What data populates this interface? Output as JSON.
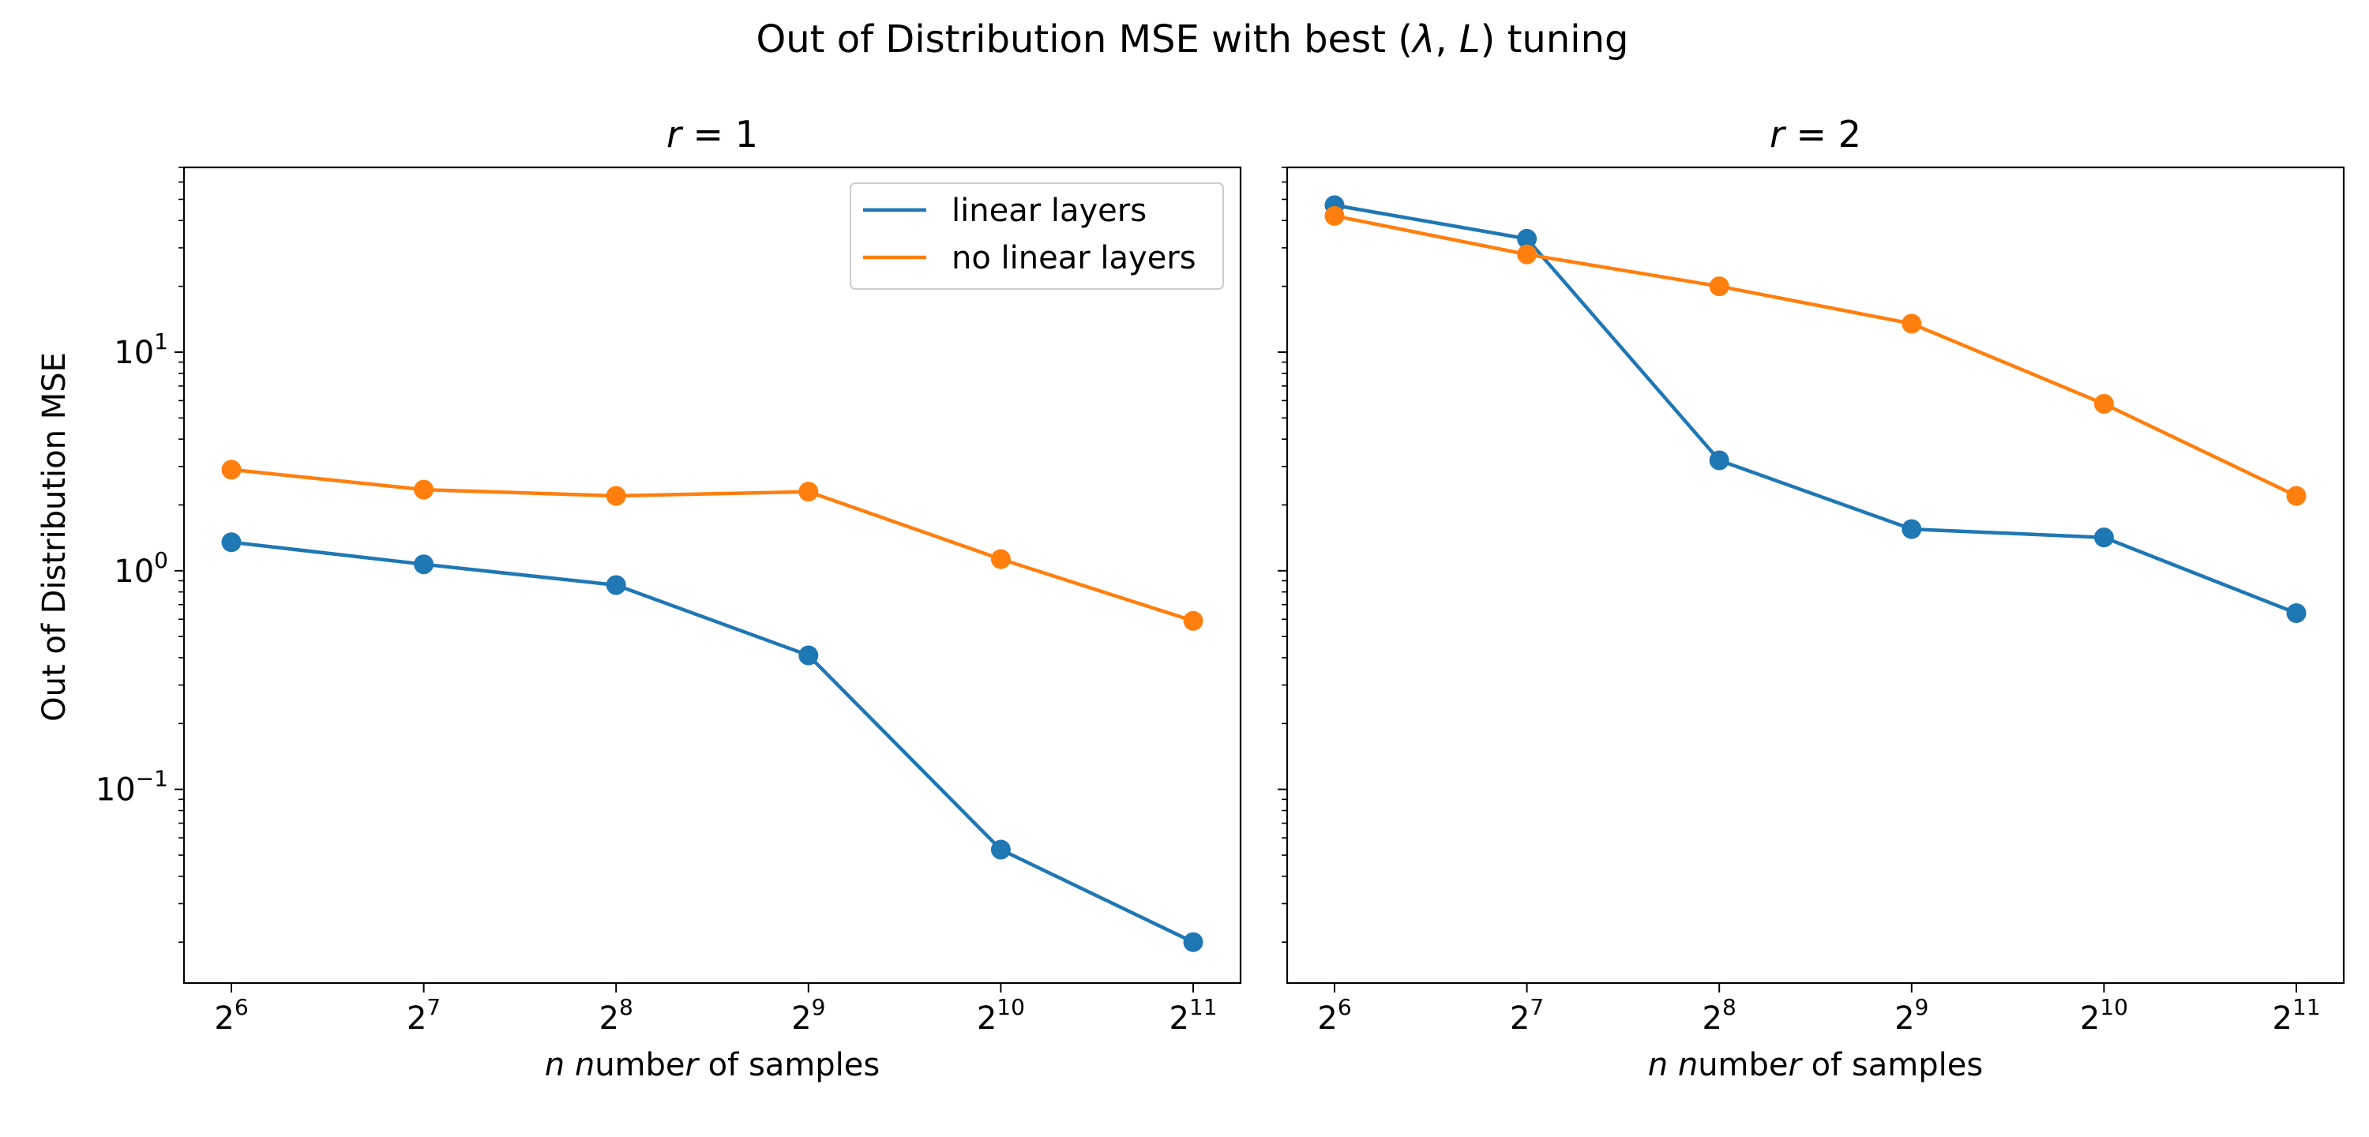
{
  "chart_data": {
    "type": "line",
    "title": "Out of Distribution MSE with best (λ, L) tuning",
    "ylabel": "Out of Distribution MSE",
    "yscale": "log",
    "ylim": [
      0.013,
      70
    ],
    "y_ticks": [
      {
        "value": 0.1,
        "base": "10",
        "exp": "−1"
      },
      {
        "value": 1,
        "base": "10",
        "exp": "0"
      },
      {
        "value": 10,
        "base": "10",
        "exp": "1"
      }
    ],
    "x_ticks": [
      {
        "value": 64,
        "base": "2",
        "exp": "6"
      },
      {
        "value": 128,
        "base": "2",
        "exp": "7"
      },
      {
        "value": 256,
        "base": "2",
        "exp": "8"
      },
      {
        "value": 512,
        "base": "2",
        "exp": "9"
      },
      {
        "value": 1024,
        "base": "2",
        "exp": "10"
      },
      {
        "value": 2048,
        "base": "2",
        "exp": "11"
      }
    ],
    "grid": false,
    "legend": {
      "placement": "top-right",
      "panel": 0
    },
    "colors": {
      "linear layers": "#1f77b4",
      "no linear layers": "#ff7f0e"
    },
    "panels": [
      {
        "title": "r = 1",
        "xlabel": "n number of samples",
        "x": [
          64,
          128,
          256,
          512,
          1024,
          2048
        ],
        "series": [
          {
            "name": "linear layers",
            "values": [
              1.35,
              1.07,
              0.86,
              0.41,
              0.053,
              0.02
            ]
          },
          {
            "name": "no linear layers",
            "values": [
              2.9,
              2.35,
              2.2,
              2.3,
              1.13,
              0.59
            ]
          }
        ]
      },
      {
        "title": "r = 2",
        "xlabel": "n number of samples",
        "x": [
          64,
          128,
          256,
          512,
          1024,
          2048
        ],
        "series": [
          {
            "name": "linear layers",
            "values": [
              47,
              33,
              3.2,
              1.55,
              1.42,
              0.64
            ]
          },
          {
            "name": "no linear layers",
            "values": [
              42,
              28,
              20,
              13.5,
              5.8,
              2.2
            ]
          }
        ]
      }
    ]
  }
}
